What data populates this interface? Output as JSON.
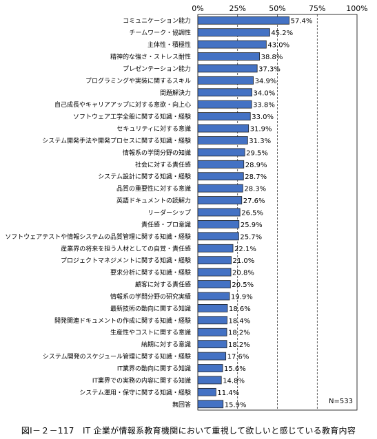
{
  "chart_data": {
    "type": "bar",
    "orientation": "horizontal",
    "title": "",
    "xlabel": "",
    "ylabel": "",
    "xlim": [
      0,
      100
    ],
    "x_ticks": [
      "0%",
      "25%",
      "50%",
      "75%",
      "100%"
    ],
    "grid": "vertical dashed at 25% intervals",
    "bar_color": "#4472c4",
    "bar_border_color": "#1f1f1f",
    "categories": [
      "コミュニケーション能力",
      "チームワーク・協調性",
      "主体性・積極性",
      "精神的な強さ・ストレス耐性",
      "プレゼンテーション能力",
      "プログラミングや実装に関するスキル",
      "問題解決力",
      "自己成長やキャリアアップに対する意欲・向上心",
      "ソフトウェア工学全般に関する知識・経験",
      "セキュリティに対する意識",
      "システム開発手法や開発プロセスに関する知識・経験",
      "情報系の学問分野の知識",
      "社会に対する責任感",
      "システム設計に関する知識・経験",
      "品質の重要性に対する意識",
      "英語ドキュメントの読解力",
      "リーダーシップ",
      "責任感・プロ意識",
      "ソフトウェアテストや情報システムの品質管理に関する知識・経験",
      "産業界の将来を担う人材としての自覚・責任感",
      "プロジェクトマネジメントに関する知識・経験",
      "要求分析に関する知識・経験",
      "顧客に対する責任感",
      "情報系の学問分野の研究実績",
      "最新技術の動向に関する知識",
      "開発関連ドキュメントの作成に関する知識・経験",
      "生産性やコストに関する意識",
      "納期に対する意識",
      "システム開発のスケジュール管理に関する知識・経験",
      "IT業界の動向に関する知識",
      "IT業界での実務の内容に関する知識",
      "システム運用・保守に関する知識・経験",
      "無回答"
    ],
    "values": [
      57.4,
      45.2,
      43.0,
      38.8,
      37.3,
      34.9,
      34.0,
      33.8,
      33.0,
      31.9,
      31.3,
      29.5,
      28.9,
      28.7,
      28.3,
      27.6,
      26.5,
      25.9,
      25.7,
      22.1,
      21.0,
      20.8,
      20.5,
      19.9,
      18.6,
      18.4,
      18.2,
      18.2,
      17.6,
      15.6,
      14.8,
      11.4,
      15.9
    ],
    "value_labels": [
      "57.4%",
      "45.2%",
      "43.0%",
      "38.8%",
      "37.3%",
      "34.9%",
      "34.0%",
      "33.8%",
      "33.0%",
      "31.9%",
      "31.3%",
      "29.5%",
      "28.9%",
      "28.7%",
      "28.3%",
      "27.6%",
      "26.5%",
      "25.9%",
      "25.7%",
      "22.1%",
      "21.0%",
      "20.8%",
      "20.5%",
      "19.9%",
      "18.6%",
      "18.4%",
      "18.2%",
      "18.2%",
      "17.6%",
      "15.6%",
      "14.8%",
      "11.4%",
      "15.9%"
    ],
    "annotation": "N=533"
  },
  "caption": "図Ⅰ－２－117　IT 企業が情報系教育機関において重視して欲しいと感じている教育内容"
}
